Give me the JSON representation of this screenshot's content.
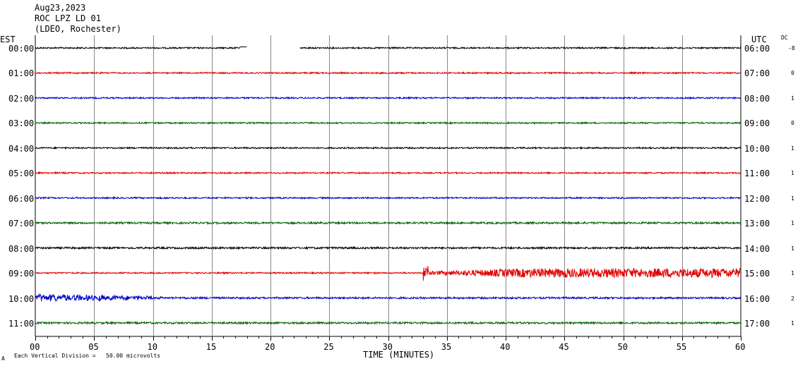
{
  "header": {
    "date": "Aug23,2023",
    "station": "ROC LPZ LD 01",
    "source": "(LDEO, Rochester)"
  },
  "labels": {
    "left_tz": "EST",
    "right_tz": "UTC",
    "dc": "DC",
    "xlabel": "TIME (MINUTES)",
    "footnote": "Each Vertical Division =   50.00 microvolts",
    "corner_mark": "A"
  },
  "colors": {
    "trace_cycle": [
      "#000000",
      "#e00000",
      "#0000c8",
      "#006400"
    ],
    "grid": "#888888"
  },
  "chart_data": {
    "type": "line",
    "title": "ROC LPZ LD 01",
    "xlabel": "TIME (MINUTES)",
    "xlim": [
      0,
      60
    ],
    "xticks": [
      "00",
      "05",
      "10",
      "15",
      "20",
      "25",
      "30",
      "35",
      "40",
      "45",
      "50",
      "55",
      "60"
    ],
    "grid": true,
    "vertical_division": "50.00 microvolts",
    "rows": [
      {
        "est": "00:00",
        "utc": "06:00",
        "dc": "-8",
        "color": "#000000",
        "amplitude": 1.0,
        "gap": [
          18.0,
          22.5
        ],
        "events": []
      },
      {
        "est": "01:00",
        "utc": "07:00",
        "dc": "0",
        "color": "#e00000",
        "amplitude": 1.0,
        "gap": null,
        "events": []
      },
      {
        "est": "02:00",
        "utc": "08:00",
        "dc": "1",
        "color": "#0000c8",
        "amplitude": 1.0,
        "gap": null,
        "events": []
      },
      {
        "est": "03:00",
        "utc": "09:00",
        "dc": "0",
        "color": "#006400",
        "amplitude": 1.0,
        "gap": null,
        "events": []
      },
      {
        "est": "04:00",
        "utc": "10:00",
        "dc": "1",
        "color": "#000000",
        "amplitude": 1.0,
        "gap": null,
        "events": []
      },
      {
        "est": "05:00",
        "utc": "11:00",
        "dc": "1",
        "color": "#e00000",
        "amplitude": 1.0,
        "gap": null,
        "events": []
      },
      {
        "est": "06:00",
        "utc": "12:00",
        "dc": "1",
        "color": "#0000c8",
        "amplitude": 1.0,
        "gap": null,
        "events": []
      },
      {
        "est": "07:00",
        "utc": "13:00",
        "dc": "1",
        "color": "#006400",
        "amplitude": 1.3,
        "gap": null,
        "events": []
      },
      {
        "est": "08:00",
        "utc": "14:00",
        "dc": "1",
        "color": "#000000",
        "amplitude": 1.3,
        "gap": null,
        "events": []
      },
      {
        "est": "09:00",
        "utc": "15:00",
        "dc": "1",
        "color": "#e00000",
        "amplitude": 1.0,
        "gap": null,
        "events": [
          {
            "start": 33.0,
            "end": 60.0,
            "scale": 6.5
          }
        ]
      },
      {
        "est": "10:00",
        "utc": "16:00",
        "dc": "2",
        "color": "#0000c8",
        "amplitude": 1.3,
        "gap": null,
        "events": [
          {
            "start": 0.0,
            "end": 10.0,
            "scale": 6.0
          },
          {
            "start": 10.0,
            "end": 20.0,
            "scale": 2.0
          }
        ]
      },
      {
        "est": "11:00",
        "utc": "17:00",
        "dc": "1",
        "color": "#006400",
        "amplitude": 1.3,
        "gap": null,
        "events": []
      }
    ]
  }
}
